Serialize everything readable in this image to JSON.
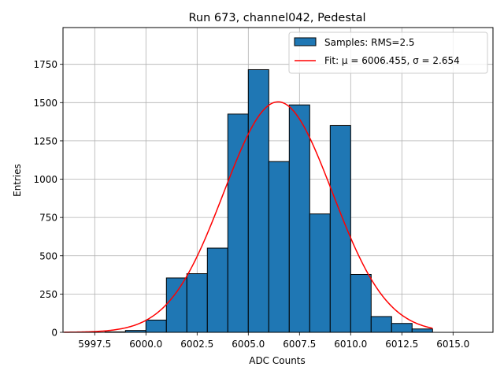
{
  "chart_data": {
    "type": "bar",
    "title": "Run 673, channel042, Pedestal",
    "xlabel": "ADC Counts",
    "ylabel": "Entries",
    "xlim": [
      5995.95,
      6016.95
    ],
    "ylim": [
      0,
      1990
    ],
    "xticks": [
      5997.5,
      6000.0,
      6002.5,
      6005.0,
      6007.5,
      6010.0,
      6012.5,
      6015.0
    ],
    "xtick_labels": [
      "5997.5",
      "6000.0",
      "6002.5",
      "6005.0",
      "6007.5",
      "6010.0",
      "6012.5",
      "6015.0"
    ],
    "yticks": [
      0,
      250,
      500,
      750,
      1000,
      1250,
      1500,
      1750
    ],
    "ytick_labels": [
      "0",
      "250",
      "500",
      "750",
      "1000",
      "1250",
      "1500",
      "1750"
    ],
    "grid": true,
    "legend_position": "top-right",
    "bin_width": 1,
    "bins": [
      {
        "x": 5998,
        "value": 3
      },
      {
        "x": 5999,
        "value": 12
      },
      {
        "x": 6000,
        "value": 80
      },
      {
        "x": 6001,
        "value": 355
      },
      {
        "x": 6002,
        "value": 383
      },
      {
        "x": 6003,
        "value": 550
      },
      {
        "x": 6004,
        "value": 1425
      },
      {
        "x": 6005,
        "value": 1715
      },
      {
        "x": 6006,
        "value": 1115
      },
      {
        "x": 6007,
        "value": 1485
      },
      {
        "x": 6008,
        "value": 773
      },
      {
        "x": 6009,
        "value": 1350
      },
      {
        "x": 6010,
        "value": 378
      },
      {
        "x": 6011,
        "value": 103
      },
      {
        "x": 6012,
        "value": 58
      },
      {
        "x": 6013,
        "value": 22
      }
    ],
    "bar_color": "#1f77b4",
    "fit": {
      "mu": 6006.455,
      "sigma": 2.654,
      "peak": 1505,
      "x_range": [
        5996,
        6014
      ],
      "color": "#ff0000"
    },
    "legend": [
      {
        "label": "Samples: RMS=2.5",
        "kind": "patch",
        "color": "#1f77b4"
      },
      {
        "label": "Fit: μ = 6006.455, σ = 2.654",
        "kind": "line",
        "color": "#ff0000"
      }
    ]
  }
}
